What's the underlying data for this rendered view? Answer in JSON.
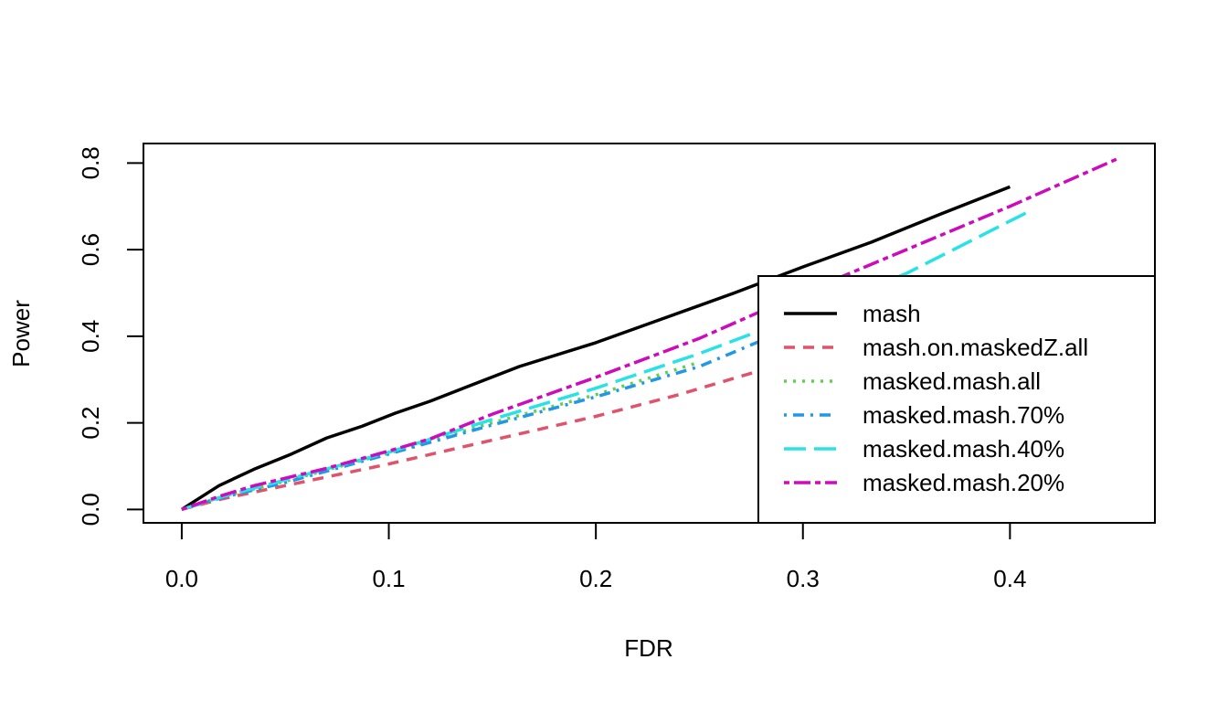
{
  "chart_data": {
    "type": "line",
    "title": "",
    "xlabel": "FDR",
    "ylabel": "Power",
    "xlim": [
      -0.0185,
      0.47
    ],
    "ylim": [
      -0.031,
      0.845
    ],
    "xticks": [
      0.0,
      0.1,
      0.2,
      0.3,
      0.4
    ],
    "xtick_labels": [
      "0.0",
      "0.1",
      "0.2",
      "0.3",
      "0.4"
    ],
    "yticks": [
      0.0,
      0.2,
      0.4,
      0.6,
      0.8
    ],
    "ytick_labels": [
      "0.0",
      "0.2",
      "0.4",
      "0.6",
      "0.8"
    ],
    "grid": false,
    "legend_position": "bottom-right",
    "series": [
      {
        "name": "mash",
        "color": "#000000",
        "dash": "solid",
        "x": [
          0.0,
          0.018,
          0.035,
          0.053,
          0.07,
          0.087,
          0.103,
          0.12,
          0.136,
          0.163,
          0.2,
          0.232,
          0.267,
          0.3,
          0.333,
          0.367,
          0.4
        ],
        "y": [
          0.0,
          0.055,
          0.093,
          0.128,
          0.165,
          0.192,
          0.222,
          0.25,
          0.28,
          0.33,
          0.385,
          0.44,
          0.5,
          0.56,
          0.617,
          0.683,
          0.745
        ]
      },
      {
        "name": "mash.on.maskedZ.all",
        "color": "#DF536B",
        "dash": "dashed",
        "x": [
          0.0,
          0.02,
          0.05,
          0.1,
          0.15,
          0.2,
          0.24,
          0.3
        ],
        "y": [
          0.0,
          0.025,
          0.055,
          0.105,
          0.16,
          0.215,
          0.265,
          0.35
        ]
      },
      {
        "name": "masked.mash.all",
        "color": "#61D04F",
        "dash": "dotted",
        "x": [
          0.0,
          0.02,
          0.05,
          0.1,
          0.15,
          0.2,
          0.25
        ],
        "y": [
          0.0,
          0.03,
          0.065,
          0.13,
          0.2,
          0.265,
          0.34
        ]
      },
      {
        "name": "masked.mash.70%",
        "color": "#2297E6",
        "dash": "dotdash",
        "x": [
          0.0,
          0.02,
          0.05,
          0.1,
          0.15,
          0.2,
          0.25,
          0.3
        ],
        "y": [
          0.0,
          0.028,
          0.062,
          0.128,
          0.195,
          0.26,
          0.33,
          0.43
        ]
      },
      {
        "name": "masked.mash.40%",
        "color": "#28E2E5",
        "dash": "longdash",
        "x": [
          0.0,
          0.02,
          0.05,
          0.1,
          0.15,
          0.2,
          0.25,
          0.3,
          0.35,
          0.41
        ],
        "y": [
          0.0,
          0.03,
          0.068,
          0.132,
          0.208,
          0.28,
          0.36,
          0.45,
          0.545,
          0.69
        ]
      },
      {
        "name": "masked.mash.20%",
        "color": "#CD0BBC",
        "dash": "twodash",
        "x": [
          0.0,
          0.018,
          0.035,
          0.07,
          0.1,
          0.12,
          0.15,
          0.2,
          0.25,
          0.3,
          0.35,
          0.4,
          0.452
        ],
        "y": [
          0.0,
          0.03,
          0.055,
          0.095,
          0.135,
          0.163,
          0.22,
          0.305,
          0.395,
          0.5,
          0.6,
          0.7,
          0.81
        ]
      }
    ]
  }
}
